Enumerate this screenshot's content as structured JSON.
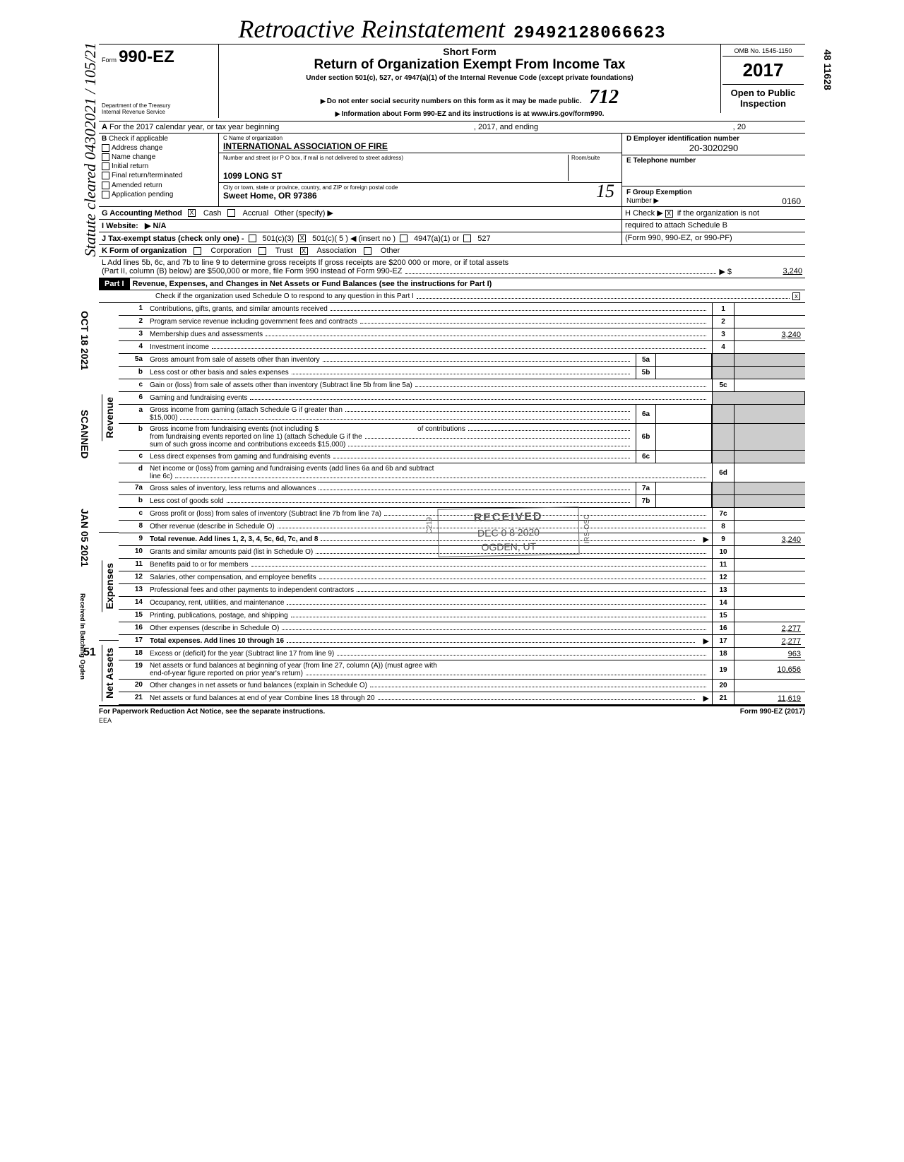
{
  "side_text_right_top": "48 11628",
  "side_stamps_left": [
    "SCANNED",
    "OCT 18 2021",
    "JAN 05 2021",
    "Received In Batching Ogden",
    "51"
  ],
  "handwritten_side": "Statute cleared 04302021 / 105/21",
  "header": {
    "cursive": "Retroactive Reinstatement",
    "dln": "29492128066623",
    "form_prefix": "Form",
    "form_no": "990-EZ",
    "short_form": "Short Form",
    "main_title": "Return of Organization Exempt From Income Tax",
    "under_section": "Under section 501(c), 527, or 4947(a)(1) of the Internal Revenue Code (except private foundations)",
    "ssn_warning": "Do not enter social security numbers on this form as it may be made public.",
    "info_about": "Information about Form 990-EZ and its instructions is at www.irs.gov/form990.",
    "dept1": "Department of the Treasury",
    "dept2": "Internal Revenue Service",
    "omb": "OMB No. 1545-1150",
    "year": "2017",
    "open": "Open to Public",
    "inspection": "Inspection",
    "stamp_712": "712"
  },
  "lineA": {
    "text": "For the 2017 calendar year, or tax year beginning",
    "mid": ", 2017, and ending",
    "end": ", 20"
  },
  "sectionB": {
    "title": "Check if applicable",
    "items": [
      "Address change",
      "Name change",
      "Initial return",
      "Final return/terminated",
      "Amended return",
      "Application pending"
    ]
  },
  "sectionC": {
    "label_c": "C  Name of organization",
    "org_name": "INTERNATIONAL ASSOCIATION OF FIRE",
    "label_street": "Number and street (or P O  box, if mail is not delivered to street address)",
    "room": "Room/suite",
    "street": "1099 LONG ST",
    "label_city": "City or town, state or province, country, and ZIP or foreign postal code",
    "city": "Sweet Home, OR 97386",
    "hw_15": "15"
  },
  "sectionD": {
    "label": "D  Employer identification number",
    "value": "20-3020290"
  },
  "sectionE": {
    "label": "E  Telephone number",
    "value": ""
  },
  "sectionF": {
    "label": "F  Group Exemption",
    "label2": "Number  ▶",
    "value": "0160"
  },
  "lineG": {
    "label": "G  Accounting Method",
    "cash": "Cash",
    "accrual": "Accrual",
    "other": "Other (specify) ▶",
    "cash_checked": true
  },
  "lineH": {
    "text": "H  Check ▶",
    "checked": true,
    "suffix": "if the organization is not",
    "line2": "required to attach Schedule B",
    "line3": "(Form 990, 990-EZ, or 990-PF)"
  },
  "lineI": {
    "label": "I   Website:",
    "value": "▶ N/A"
  },
  "lineJ": {
    "label": "J   Tax-exempt status (check only one) -",
    "opt1": "501(c)(3)",
    "opt2": "501(c)( 5  ) ◀ (insert no )",
    "opt2_checked": true,
    "opt3": "4947(a)(1) or",
    "opt4": "527"
  },
  "lineK": {
    "label": "K  Form of organization",
    "opts": [
      "Corporation",
      "Trust",
      "Association",
      "Other"
    ],
    "checked_idx": 2
  },
  "lineL": {
    "text1": "L  Add lines 5b, 6c, and 7b to line 9 to determine gross receipts  If gross receipts are $200 000 or more, or if total assets",
    "text2": "(Part II, column (B) below) are $500,000 or more, file Form 990 instead of Form 990-EZ",
    "arrow": "▶ $",
    "value": "3,240"
  },
  "part1": {
    "label": "Part I",
    "title": "Revenue, Expenses, and Changes in Net Assets or Fund Balances (see the instructions for Part I)",
    "check_text": "Check if the organization used Schedule O to respond to any question in this Part I",
    "checked": true
  },
  "received_stamp": {
    "l1": "RECEIVED",
    "l2": "DEC 0 8 2020",
    "l3": "OGDEN, UT",
    "side1": "C219",
    "side2": "IRS-OSC"
  },
  "sections": {
    "revenue": "Revenue",
    "expenses": "Expenses",
    "net": "Net Assets"
  },
  "lines": [
    {
      "n": "1",
      "t": "Contributions, gifts, grants, and similar amounts received",
      "box": "1",
      "amt": ""
    },
    {
      "n": "2",
      "t": "Program service revenue including government fees and contracts",
      "box": "2",
      "amt": ""
    },
    {
      "n": "3",
      "t": "Membership dues and assessments",
      "box": "3",
      "amt": "3,240"
    },
    {
      "n": "4",
      "t": "Investment income",
      "box": "4",
      "amt": ""
    },
    {
      "n": "5a",
      "t": "Gross amount from sale of assets other than inventory",
      "sub": "5a"
    },
    {
      "n": "b",
      "t": "Less  cost or other basis and sales expenses",
      "sub": "5b"
    },
    {
      "n": "c",
      "t": "Gain or (loss) from sale of assets other than inventory (Subtract line 5b from line 5a)",
      "box": "5c",
      "amt": ""
    },
    {
      "n": "6",
      "t": "Gaming and fundraising events"
    },
    {
      "n": "a",
      "t": "Gross income from gaming (attach Schedule G if greater than",
      "t2": "$15,000)",
      "sub": "6a"
    },
    {
      "n": "b",
      "t": "Gross income from fundraising events (not including       $",
      "t2": "from fundraising events reported on line 1) (attach Schedule G if the",
      "t3": "sum of such gross income and contributions exceeds $15,000)",
      "mid": "of contributions",
      "sub": "6b"
    },
    {
      "n": "c",
      "t": "Less  direct expenses from gaming and fundraising events",
      "sub": "6c"
    },
    {
      "n": "d",
      "t": "Net income or (loss) from gaming and fundraising events (add lines 6a and 6b and subtract",
      "t2": "line 6c)",
      "box": "6d",
      "amt": ""
    },
    {
      "n": "7a",
      "t": "Gross sales of inventory, less returns and allowances",
      "sub": "7a"
    },
    {
      "n": "b",
      "t": "Less  cost of goods sold",
      "sub": "7b"
    },
    {
      "n": "c",
      "t": "Gross profit or (loss) from sales of inventory (Subtract line 7b from line 7a)",
      "box": "7c",
      "amt": ""
    },
    {
      "n": "8",
      "t": "Other revenue (describe in Schedule O)",
      "box": "8",
      "amt": ""
    },
    {
      "n": "9",
      "t": "Total revenue.  Add lines 1, 2, 3, 4, 5c, 6d, 7c, and 8",
      "box": "9",
      "amt": "3,240",
      "bold": true,
      "arrow": true
    },
    {
      "n": "10",
      "t": "Grants and similar amounts paid (list in Schedule O)",
      "box": "10",
      "amt": ""
    },
    {
      "n": "11",
      "t": "Benefits paid to or for members",
      "box": "11",
      "amt": ""
    },
    {
      "n": "12",
      "t": "Salaries, other compensation, and employee benefits",
      "box": "12",
      "amt": ""
    },
    {
      "n": "13",
      "t": "Professional fees and other payments to independent contractors",
      "box": "13",
      "amt": ""
    },
    {
      "n": "14",
      "t": "Occupancy, rent, utilities, and maintenance",
      "box": "14",
      "amt": ""
    },
    {
      "n": "15",
      "t": "Printing, publications, postage, and shipping",
      "box": "15",
      "amt": ""
    },
    {
      "n": "16",
      "t": "Other expenses (describe in Schedule O)",
      "box": "16",
      "amt": "2,277"
    },
    {
      "n": "17",
      "t": "Total expenses.  Add lines 10 through 16",
      "box": "17",
      "amt": "2,277",
      "bold": true,
      "arrow": true
    },
    {
      "n": "18",
      "t": "Excess or (deficit) for the year (Subtract line 17 from line 9)",
      "box": "18",
      "amt": "963"
    },
    {
      "n": "19",
      "t": "Net assets or fund balances at beginning of year (from line 27, column (A)) (must agree with",
      "t2": "end-of-year figure reported on prior year's return)",
      "box": "19",
      "amt": "10,656"
    },
    {
      "n": "20",
      "t": "Other changes in net assets or fund balances (explain in Schedule O)",
      "box": "20",
      "amt": ""
    },
    {
      "n": "21",
      "t": "Net assets or fund balances at end of year  Combine lines 18 through 20",
      "box": "21",
      "amt": "11,619",
      "arrow": true
    }
  ],
  "footer": {
    "left": "For Paperwork Reduction Act Notice, see the separate instructions.",
    "mid": "EEA",
    "right": "Form 990-EZ (2017)"
  }
}
